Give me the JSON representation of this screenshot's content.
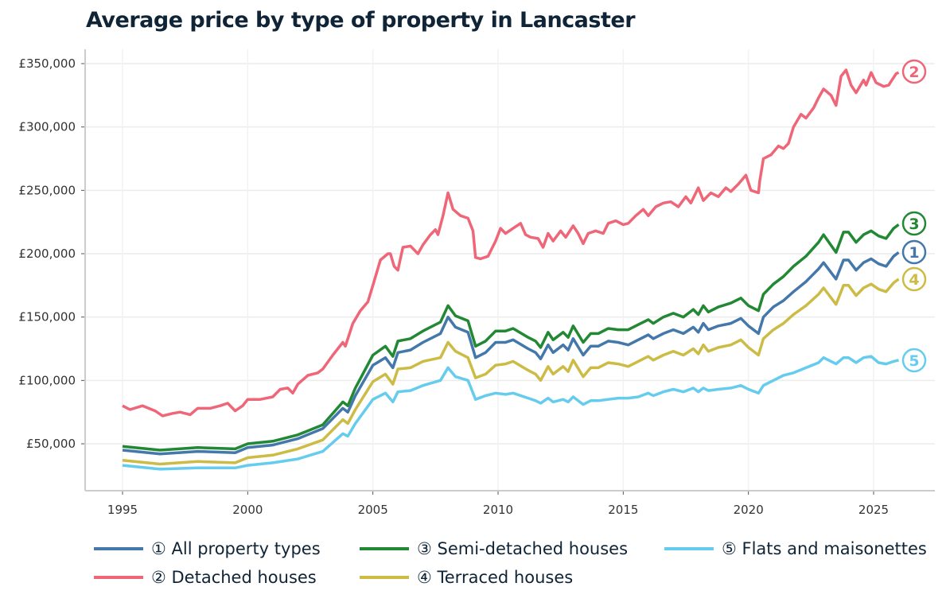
{
  "chart_data": {
    "type": "line",
    "title": "Average price by type of property in Lancaster",
    "xlabel": "",
    "ylabel": "",
    "xlim": [
      1993.3,
      2027.4
    ],
    "ylim": [
      15000,
      360000
    ],
    "grid": true,
    "legend_placement": "bottom",
    "x_ticks": [
      "1995",
      "2000",
      "2005",
      "2010",
      "2015",
      "2020",
      "2025"
    ],
    "x_tick_values": [
      1995,
      2000,
      2005,
      2010,
      2015,
      2020,
      2025
    ],
    "y_ticks": [
      "£50,000",
      "£100,000",
      "£150,000",
      "£200,000",
      "£250,000",
      "£300,000",
      "£350,000"
    ],
    "y_tick_values": [
      50000,
      100000,
      150000,
      200000,
      250000,
      300000,
      350000
    ],
    "x": [
      1995,
      1996.5,
      1998,
      1999.5,
      2000,
      2001,
      2002,
      2003,
      2003.8,
      2004,
      2004.3,
      2005,
      2005.5,
      2005.8,
      2006,
      2006.5,
      2007,
      2007.7,
      2008,
      2008.3,
      2008.8,
      2009.1,
      2009.5,
      2009.9,
      2010.3,
      2010.6,
      2011.2,
      2011.5,
      2011.7,
      2012,
      2012.2,
      2012.6,
      2012.8,
      2013,
      2013.4,
      2013.7,
      2014,
      2014.4,
      2014.8,
      2015.2,
      2015.6,
      2016,
      2016.2,
      2016.6,
      2017,
      2017.4,
      2017.8,
      2018,
      2018.2,
      2018.4,
      2018.8,
      2019.3,
      2019.7,
      2020,
      2020.4,
      2020.6,
      2021,
      2021.4,
      2021.8,
      2022.3,
      2022.8,
      2023,
      2023.5,
      2023.8,
      2024,
      2024.3,
      2024.6,
      2024.9,
      2025.2,
      2025.5,
      2025.8,
      2026
    ],
    "series": [
      {
        "name": "① All property types",
        "end_label": "1",
        "color": "#4477aa",
        "values": [
          45000,
          42000,
          44000,
          43000,
          47000,
          49000,
          54000,
          62000,
          78000,
          75000,
          88000,
          112000,
          118000,
          110000,
          122000,
          124000,
          130000,
          137000,
          150000,
          142000,
          138000,
          118000,
          122000,
          130000,
          130000,
          132000,
          125000,
          122000,
          117000,
          128000,
          122000,
          128000,
          124000,
          133000,
          120000,
          127000,
          127000,
          131000,
          130000,
          128000,
          132000,
          136000,
          133000,
          137000,
          140000,
          137000,
          142000,
          138000,
          145000,
          140000,
          143000,
          145000,
          149000,
          143000,
          137000,
          150000,
          158000,
          163000,
          170000,
          178000,
          188000,
          193000,
          180000,
          195000,
          195000,
          187000,
          193000,
          196000,
          192000,
          190000,
          198000,
          201000
        ]
      },
      {
        "name": "② Detached houses",
        "end_label": "2",
        "color": "#ee6677",
        "x": [
          1995,
          1995.3,
          1995.8,
          1996.3,
          1996.6,
          1997,
          1997.3,
          1997.7,
          1998,
          1998.5,
          1998.9,
          1999.2,
          1999.5,
          1999.8,
          2000,
          2000.5,
          2001,
          2001.3,
          2001.6,
          2001.8,
          2002,
          2002.4,
          2002.8,
          2003,
          2003.4,
          2003.8,
          2003.9,
          2004.2,
          2004.5,
          2004.8,
          2005,
          2005.3,
          2005.6,
          2005.7,
          2005.85,
          2006,
          2006.2,
          2006.5,
          2006.8,
          2007,
          2007.3,
          2007.5,
          2007.6,
          2007.8,
          2008,
          2008.2,
          2008.5,
          2008.8,
          2009,
          2009.1,
          2009.3,
          2009.6,
          2009.9,
          2010.1,
          2010.3,
          2010.6,
          2010.9,
          2011.1,
          2011.3,
          2011.6,
          2011.8,
          2012,
          2012.2,
          2012.5,
          2012.7,
          2013,
          2013.2,
          2013.4,
          2013.6,
          2013.9,
          2014.2,
          2014.4,
          2014.7,
          2015,
          2015.2,
          2015.5,
          2015.8,
          2016,
          2016.3,
          2016.6,
          2016.9,
          2017.2,
          2017.5,
          2017.7,
          2018,
          2018.2,
          2018.5,
          2018.8,
          2019.1,
          2019.3,
          2019.6,
          2019.9,
          2020.1,
          2020.4,
          2020.45,
          2020.6,
          2020.9,
          2021.2,
          2021.4,
          2021.6,
          2021.8,
          2022.1,
          2022.3,
          2022.6,
          2022.8,
          2023,
          2023.3,
          2023.5,
          2023.7,
          2023.9,
          2024.1,
          2024.3,
          2024.6,
          2024.7,
          2024.9,
          2025.1,
          2025.4,
          2025.6,
          2025.9,
          2026
        ],
        "values": [
          80000,
          77000,
          80000,
          76000,
          72000,
          74000,
          75000,
          73000,
          78000,
          78000,
          80000,
          82000,
          76000,
          80000,
          85000,
          85000,
          87000,
          93000,
          94000,
          90000,
          97000,
          104000,
          106000,
          109000,
          120000,
          130000,
          127000,
          145000,
          155000,
          162000,
          175000,
          195000,
          200000,
          200000,
          190000,
          187000,
          205000,
          206000,
          200000,
          207000,
          215000,
          219000,
          215000,
          230000,
          248000,
          235000,
          230000,
          228000,
          218000,
          197000,
          196000,
          198000,
          210000,
          220000,
          216000,
          220000,
          224000,
          215000,
          213000,
          212000,
          205000,
          216000,
          210000,
          218000,
          213000,
          222000,
          216000,
          208000,
          216000,
          218000,
          216000,
          224000,
          226000,
          223000,
          224000,
          230000,
          235000,
          230000,
          237000,
          240000,
          241000,
          237000,
          245000,
          240000,
          252000,
          242000,
          248000,
          245000,
          252000,
          249000,
          255000,
          262000,
          250000,
          248000,
          257000,
          275000,
          278000,
          285000,
          283000,
          287000,
          300000,
          310000,
          307000,
          315000,
          323000,
          330000,
          325000,
          317000,
          340000,
          345000,
          333000,
          327000,
          337000,
          333000,
          343000,
          335000,
          332000,
          333000,
          342000,
          343000
        ]
      },
      {
        "name": "③ Semi-detached houses",
        "end_label": "3",
        "color": "#228833",
        "values": [
          48000,
          45000,
          47000,
          46000,
          50000,
          52000,
          57000,
          65000,
          83000,
          80000,
          94000,
          120000,
          127000,
          119000,
          131000,
          133000,
          139000,
          146000,
          159000,
          151000,
          147000,
          127000,
          131000,
          139000,
          139000,
          141000,
          134000,
          131000,
          126000,
          138000,
          132000,
          138000,
          134000,
          143000,
          130000,
          137000,
          137000,
          141000,
          140000,
          140000,
          144000,
          148000,
          145000,
          150000,
          153000,
          150000,
          156000,
          152000,
          159000,
          154000,
          158000,
          161000,
          165000,
          159000,
          155000,
          168000,
          176000,
          182000,
          190000,
          198000,
          209000,
          215000,
          201000,
          217000,
          217000,
          209000,
          215000,
          218000,
          214000,
          212000,
          220000,
          223000
        ]
      },
      {
        "name": "④ Terraced houses",
        "end_label": "4",
        "color": "#ccbb44",
        "values": [
          37000,
          34000,
          36000,
          35000,
          39000,
          41000,
          46000,
          53000,
          69000,
          66000,
          77000,
          99000,
          105000,
          97000,
          109000,
          110000,
          115000,
          118000,
          130000,
          123000,
          118000,
          102000,
          105000,
          112000,
          113000,
          115000,
          108000,
          105000,
          100000,
          111000,
          105000,
          111000,
          107000,
          116000,
          103000,
          110000,
          110000,
          114000,
          113000,
          111000,
          115000,
          119000,
          116000,
          120000,
          123000,
          120000,
          125000,
          121000,
          128000,
          123000,
          126000,
          128000,
          132000,
          126000,
          120000,
          133000,
          140000,
          145000,
          152000,
          159000,
          168000,
          173000,
          160000,
          175000,
          175000,
          167000,
          173000,
          176000,
          172000,
          170000,
          177000,
          180000
        ]
      },
      {
        "name": "⑤ Flats and maisonettes",
        "end_label": "5",
        "color": "#66ccee",
        "values": [
          33000,
          30000,
          31000,
          31000,
          33000,
          35000,
          38000,
          44000,
          58000,
          56000,
          66000,
          85000,
          90000,
          83000,
          91000,
          92000,
          96000,
          100000,
          110000,
          103000,
          100000,
          85000,
          88000,
          90000,
          89000,
          90000,
          86000,
          84000,
          82000,
          86000,
          83000,
          85000,
          83000,
          87000,
          81000,
          84000,
          84000,
          85000,
          86000,
          86000,
          87000,
          90000,
          88000,
          91000,
          93000,
          91000,
          94000,
          91000,
          94000,
          92000,
          93000,
          94000,
          96000,
          93000,
          90000,
          96000,
          100000,
          104000,
          106000,
          110000,
          114000,
          118000,
          113000,
          118000,
          118000,
          114000,
          118000,
          119000,
          114000,
          113000,
          115000,
          116000
        ]
      }
    ]
  }
}
